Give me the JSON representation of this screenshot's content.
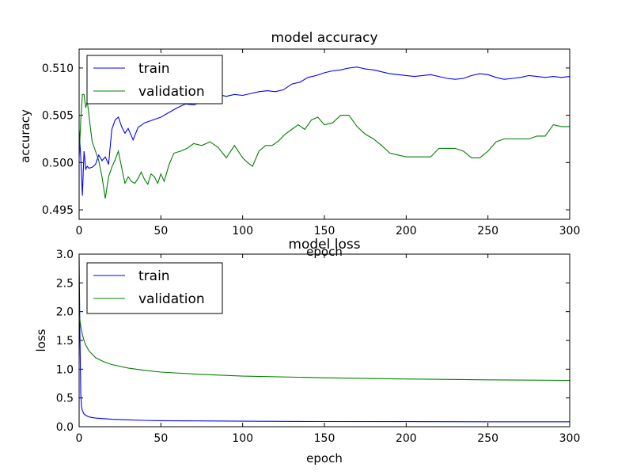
{
  "colors": {
    "train": "#0000ff",
    "validation": "#008000"
  },
  "chart_data": [
    {
      "type": "line",
      "title": "model accuracy",
      "xlabel": "epoch",
      "ylabel": "accuracy",
      "xlim": [
        0,
        300
      ],
      "ylim": [
        0.494,
        0.512
      ],
      "xticks": [
        0,
        50,
        100,
        150,
        200,
        250,
        300
      ],
      "xtick_labels": [
        "0",
        "50",
        "100",
        "150",
        "200",
        "250",
        "300"
      ],
      "yticks": [
        0.495,
        0.5,
        0.505,
        0.51
      ],
      "ytick_labels": [
        "0.495",
        "0.500",
        "0.505",
        "0.510"
      ],
      "legend": {
        "position": "top-left",
        "entries": [
          "train",
          "validation"
        ]
      },
      "grid": false,
      "series": [
        {
          "name": "train",
          "color": "#0000ff",
          "x": [
            0,
            1,
            2,
            3,
            4,
            5,
            6,
            8,
            10,
            12,
            14,
            16,
            18,
            20,
            22,
            24,
            26,
            28,
            30,
            33,
            36,
            40,
            45,
            50,
            55,
            60,
            65,
            70,
            75,
            80,
            85,
            90,
            95,
            100,
            105,
            110,
            115,
            120,
            125,
            130,
            135,
            140,
            145,
            150,
            155,
            160,
            165,
            170,
            175,
            180,
            185,
            190,
            195,
            200,
            205,
            210,
            215,
            220,
            225,
            230,
            235,
            240,
            245,
            250,
            255,
            260,
            265,
            270,
            275,
            280,
            285,
            290,
            295,
            300
          ],
          "y": [
            0.5035,
            0.5005,
            0.4965,
            0.5012,
            0.4993,
            0.4996,
            0.4994,
            0.4995,
            0.4998,
            0.5008,
            0.5002,
            0.5006,
            0.4998,
            0.5035,
            0.5045,
            0.5048,
            0.5038,
            0.5031,
            0.5036,
            0.5024,
            0.5037,
            0.5042,
            0.5045,
            0.5048,
            0.5053,
            0.5058,
            0.5062,
            0.5061,
            0.5064,
            0.5068,
            0.5072,
            0.507,
            0.5072,
            0.5071,
            0.5073,
            0.5075,
            0.5076,
            0.5075,
            0.5077,
            0.5083,
            0.5085,
            0.509,
            0.5092,
            0.5095,
            0.5097,
            0.5098,
            0.51,
            0.5101,
            0.5099,
            0.5098,
            0.5096,
            0.5094,
            0.5093,
            0.5092,
            0.5091,
            0.5092,
            0.5093,
            0.5091,
            0.5089,
            0.5088,
            0.5089,
            0.5092,
            0.5094,
            0.5093,
            0.509,
            0.5088,
            0.5089,
            0.509,
            0.5092,
            0.5091,
            0.509,
            0.5091,
            0.509,
            0.5091
          ]
        },
        {
          "name": "validation",
          "color": "#008000",
          "x": [
            0,
            1,
            2,
            3,
            4,
            5,
            6,
            7,
            8,
            10,
            12,
            14,
            16,
            18,
            20,
            22,
            24,
            26,
            28,
            30,
            32,
            34,
            36,
            38,
            40,
            42,
            44,
            46,
            48,
            50,
            52,
            55,
            58,
            62,
            66,
            70,
            75,
            80,
            85,
            90,
            95,
            100,
            103,
            106,
            110,
            114,
            118,
            122,
            126,
            130,
            134,
            138,
            142,
            146,
            150,
            155,
            160,
            165,
            170,
            175,
            180,
            185,
            190,
            195,
            200,
            205,
            210,
            215,
            220,
            225,
            230,
            235,
            240,
            245,
            250,
            255,
            260,
            265,
            270,
            275,
            280,
            285,
            290,
            295,
            300
          ],
          "y": [
            0.5005,
            0.5045,
            0.5072,
            0.5072,
            0.5058,
            0.5065,
            0.505,
            0.5035,
            0.5022,
            0.5012,
            0.5002,
            0.4985,
            0.4962,
            0.4985,
            0.4995,
            0.5003,
            0.5012,
            0.4995,
            0.4978,
            0.4985,
            0.498,
            0.4978,
            0.4983,
            0.499,
            0.4982,
            0.4977,
            0.4988,
            0.4985,
            0.4978,
            0.4988,
            0.498,
            0.4998,
            0.501,
            0.5012,
            0.5015,
            0.502,
            0.5018,
            0.5022,
            0.5016,
            0.5005,
            0.5018,
            0.5005,
            0.5,
            0.4996,
            0.5012,
            0.5018,
            0.5018,
            0.5023,
            0.503,
            0.5035,
            0.504,
            0.5035,
            0.5045,
            0.5048,
            0.504,
            0.5042,
            0.505,
            0.505,
            0.5038,
            0.503,
            0.5025,
            0.5018,
            0.501,
            0.5008,
            0.5006,
            0.5006,
            0.5006,
            0.5006,
            0.5015,
            0.5015,
            0.5015,
            0.5012,
            0.5005,
            0.5005,
            0.5012,
            0.5022,
            0.5025,
            0.5025,
            0.5025,
            0.5025,
            0.5028,
            0.5028,
            0.504,
            0.5038,
            0.5038
          ]
        }
      ]
    },
    {
      "type": "line",
      "title": "model loss",
      "xlabel": "epoch",
      "ylabel": "loss",
      "xlim": [
        0,
        300
      ],
      "ylim": [
        0,
        3
      ],
      "xticks": [
        0,
        50,
        100,
        150,
        200,
        250,
        300
      ],
      "xtick_labels": [
        "0",
        "50",
        "100",
        "150",
        "200",
        "250",
        "300"
      ],
      "yticks": [
        0,
        0.5,
        1,
        1.5,
        2,
        2.5,
        3
      ],
      "ytick_labels": [
        "0.0",
        "0.5",
        "1.0",
        "1.5",
        "2.0",
        "2.5",
        "3.0"
      ],
      "legend": {
        "position": "top-left",
        "entries": [
          "train",
          "validation"
        ]
      },
      "grid": false,
      "series": [
        {
          "name": "train",
          "color": "#0000ff",
          "x": [
            0,
            0.5,
            1,
            1.5,
            2,
            3,
            4,
            6,
            8,
            10,
            15,
            20,
            30,
            40,
            50,
            75,
            100,
            150,
            200,
            250,
            300
          ],
          "y": [
            2.95,
            1.6,
            0.55,
            0.35,
            0.28,
            0.22,
            0.2,
            0.17,
            0.16,
            0.15,
            0.14,
            0.13,
            0.12,
            0.11,
            0.105,
            0.1,
            0.095,
            0.09,
            0.088,
            0.086,
            0.085
          ]
        },
        {
          "name": "validation",
          "color": "#008000",
          "x": [
            0,
            1,
            2,
            3,
            4,
            6,
            8,
            10,
            15,
            20,
            30,
            40,
            50,
            75,
            100,
            150,
            200,
            250,
            300
          ],
          "y": [
            1.95,
            1.75,
            1.6,
            1.5,
            1.42,
            1.32,
            1.26,
            1.2,
            1.13,
            1.08,
            1.02,
            0.98,
            0.95,
            0.91,
            0.88,
            0.85,
            0.83,
            0.815,
            0.805
          ]
        }
      ]
    }
  ]
}
